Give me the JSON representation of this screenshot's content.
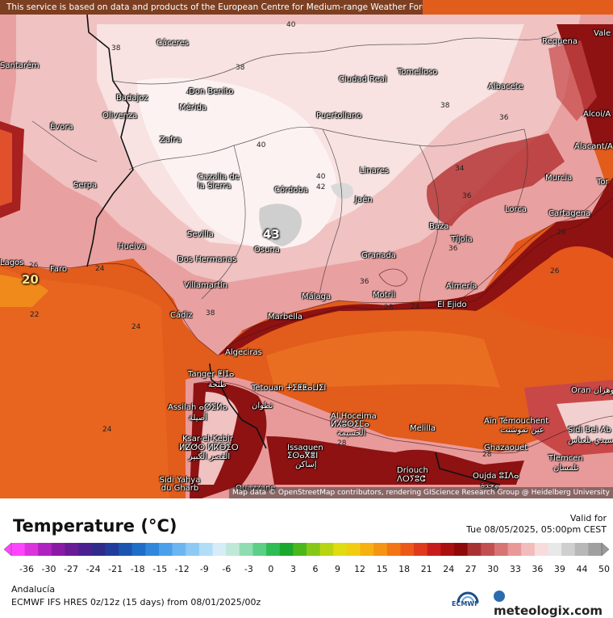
{
  "disclaimer": "This service is based on data and products of the European Centre for Medium-range Weather Forecasts (ECMWF)",
  "attribution": "Map data © OpenStreetMap contributors, rendering GIScience Research Group @ Heidelberg University",
  "title": "Temperature (°C)",
  "valid_label": "Valid for",
  "valid_time": "Tue 08/05/2025, 05:00pm CEST",
  "region": "Andalucía",
  "model_line": "ECMWF IFS HRES 0z/12z (15 days)  from  08/01/2025/00z",
  "ecmwf_label": "ECMWF",
  "brand": "meteologix.com",
  "colors": {
    "sea_warm": "#e05a1e",
    "land_hot": "#f3d6d6",
    "land_extreme": "#8c1010"
  },
  "colorbar": {
    "ticks": [
      "-36",
      "-30",
      "-27",
      "-24",
      "-21",
      "-18",
      "-15",
      "-12",
      "-9",
      "-6",
      "-3",
      "0",
      "3",
      "6",
      "9",
      "12",
      "15",
      "18",
      "21",
      "24",
      "27",
      "30",
      "33",
      "36",
      "39",
      "44",
      "50"
    ],
    "min": -39,
    "max": 51
  },
  "max_marker": "43",
  "min_marker": "20",
  "cities": [
    {
      "name": "Cáceres"
    },
    {
      "name": "Tomelloso"
    },
    {
      "name": "Requena"
    },
    {
      "name": "Vale"
    },
    {
      "name": "Santarém"
    },
    {
      "name": "Don Benito"
    },
    {
      "name": "Ciudad Real"
    },
    {
      "name": "Albacete"
    },
    {
      "name": "Badajoz"
    },
    {
      "name": "Mérida"
    },
    {
      "name": "Alcoi/A"
    },
    {
      "name": "Évora"
    },
    {
      "name": "Olivenza"
    },
    {
      "name": "Puertollano"
    },
    {
      "name": "Zafra"
    },
    {
      "name": "Alacant/Al"
    },
    {
      "name": "Cazalla de la Sierra"
    },
    {
      "name": "Linares"
    },
    {
      "name": "Murcia"
    },
    {
      "name": "Tor"
    },
    {
      "name": "Serpa"
    },
    {
      "name": "Córdoba"
    },
    {
      "name": "Jaén"
    },
    {
      "name": "Lorca"
    },
    {
      "name": "Cartagena"
    },
    {
      "name": "Sevilla"
    },
    {
      "name": "Baza"
    },
    {
      "name": "Tíjola"
    },
    {
      "name": "Huelva"
    },
    {
      "name": "Dos Hermanas"
    },
    {
      "name": "Osuna"
    },
    {
      "name": "Granada"
    },
    {
      "name": "Lagos"
    },
    {
      "name": "Faro"
    },
    {
      "name": "Villamartín"
    },
    {
      "name": "Almería"
    },
    {
      "name": "Málaga"
    },
    {
      "name": "Motril"
    },
    {
      "name": "El Ejido"
    },
    {
      "name": "Cádiz"
    },
    {
      "name": "Marbella"
    },
    {
      "name": "Algeciras"
    },
    {
      "name": "Tanger ⵟⵏⵊⴰ"
    },
    {
      "name": "طنجة"
    },
    {
      "name": "Tetouan ⵜⵉⵟⵟⴰⵡⵉⵏ"
    },
    {
      "name": "تطوان"
    },
    {
      "name": "Oran وهران"
    },
    {
      "name": "Assilah ⴰⵚⵉⵍⴰ"
    },
    {
      "name": "أصيلة"
    },
    {
      "name": "Al Hoceima"
    },
    {
      "name": "ⵍⵃⵓⵙⵉⵎⴰ"
    },
    {
      "name": "الحسيمة"
    },
    {
      "name": "Aïn Témouchent"
    },
    {
      "name": "عين تموشنت"
    },
    {
      "name": "Sidi Bel Ab"
    },
    {
      "name": "سيدي بلعباس"
    },
    {
      "name": "Ksar-el-Kebir"
    },
    {
      "name": "ⵍⵇⵚⵔ ⵍⴽⴱⵉⵔ"
    },
    {
      "name": "القصر الكبير"
    },
    {
      "name": "Melilla"
    },
    {
      "name": "Issaguen"
    },
    {
      "name": "ⵉⵙⴰⴳⴻⵏ"
    },
    {
      "name": "إساكن"
    },
    {
      "name": "Ghazaouet"
    },
    {
      "name": "Tlemcen"
    },
    {
      "name": "تلمسان"
    },
    {
      "name": "Driouch"
    },
    {
      "name": "ⴷⵔⵢⵓⵛ"
    },
    {
      "name": "Oujda ⵓⵊⴷⴰ"
    },
    {
      "name": "وجدة"
    },
    {
      "name": "Sidi Yahya du Gharb"
    },
    {
      "name": "Ouazzane"
    }
  ],
  "isolines": [
    "40",
    "38",
    "38",
    "40",
    "38",
    "36",
    "40",
    "40",
    "42",
    "34",
    "36",
    "36",
    "38",
    "36",
    "24",
    "26",
    "26",
    "24",
    "22",
    "24",
    "24",
    "28",
    "28",
    "26",
    "28"
  ]
}
